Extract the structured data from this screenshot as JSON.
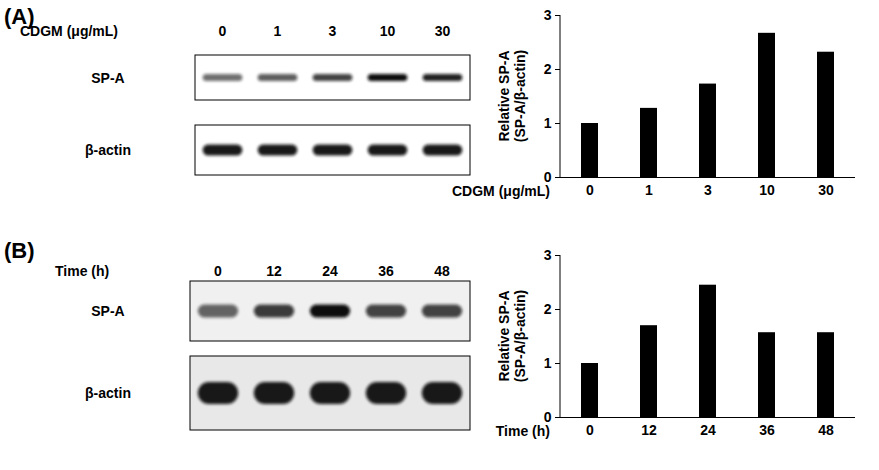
{
  "chart_data": [
    {
      "type": "bar",
      "categories": [
        "0",
        "1",
        "3",
        "10",
        "30"
      ],
      "values": [
        1.0,
        1.28,
        1.73,
        2.67,
        2.32
      ],
      "color": "#000000",
      "xlabel": "CDGM (μg/mL)",
      "ylabel": "Relative SP-A\n(SP-A/β-actin)",
      "ylim": [
        0,
        3
      ],
      "yticks": [
        0,
        1,
        2,
        3
      ]
    },
    {
      "type": "bar",
      "categories": [
        "0",
        "12",
        "24",
        "36",
        "48"
      ],
      "values": [
        1.0,
        1.7,
        2.45,
        1.57,
        1.57
      ],
      "color": "#000000",
      "xlabel": "Time (h)",
      "ylabel": "Relative SP-A\n(SP-A/β-actin)",
      "ylim": [
        0,
        3
      ],
      "yticks": [
        0,
        1,
        2,
        3
      ]
    }
  ],
  "panels": [
    {
      "label": "(A)",
      "blot_rows": [
        "SP-A",
        "β-actin"
      ]
    },
    {
      "label": "(B)",
      "blot_rows": [
        "SP-A",
        "β-actin"
      ]
    }
  ]
}
